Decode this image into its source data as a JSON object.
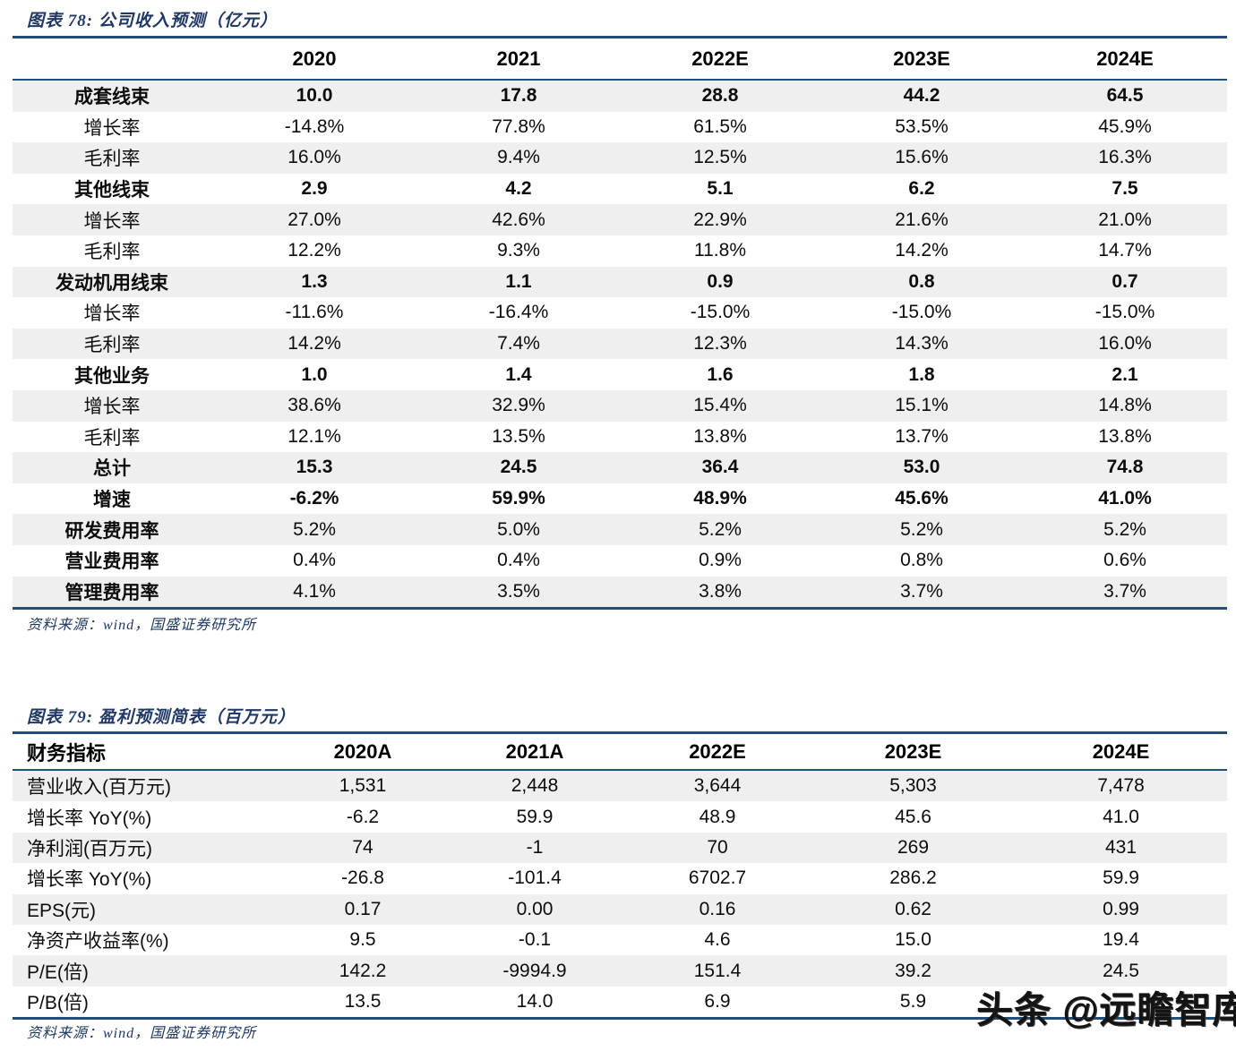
{
  "page": {
    "watermark": "头条 @远瞻智库"
  },
  "colors": {
    "border_navy": "#1f4e79",
    "title_blue": "#1f3864",
    "stripe_gray": "#efefef"
  },
  "figure78": {
    "title": "图表 78:  公司收入预测（亿元）",
    "source": "资料来源：wind，国盛证券研究所",
    "columns": [
      "",
      "2020",
      "2021",
      "2022E",
      "2023E",
      "2024E"
    ],
    "rows": [
      {
        "label": "成套线束",
        "values": [
          "10.0",
          "17.8",
          "28.8",
          "44.2",
          "64.5"
        ],
        "bold": "all"
      },
      {
        "label": "增长率",
        "values": [
          "-14.8%",
          "77.8%",
          "61.5%",
          "53.5%",
          "45.9%"
        ],
        "bold": "none"
      },
      {
        "label": "毛利率",
        "values": [
          "16.0%",
          "9.4%",
          "12.5%",
          "15.6%",
          "16.3%"
        ],
        "bold": "none"
      },
      {
        "label": "其他线束",
        "values": [
          "2.9",
          "4.2",
          "5.1",
          "6.2",
          "7.5"
        ],
        "bold": "all"
      },
      {
        "label": "增长率",
        "values": [
          "27.0%",
          "42.6%",
          "22.9%",
          "21.6%",
          "21.0%"
        ],
        "bold": "none"
      },
      {
        "label": "毛利率",
        "values": [
          "12.2%",
          "9.3%",
          "11.8%",
          "14.2%",
          "14.7%"
        ],
        "bold": "none"
      },
      {
        "label": "发动机用线束",
        "values": [
          "1.3",
          "1.1",
          "0.9",
          "0.8",
          "0.7"
        ],
        "bold": "all"
      },
      {
        "label": "增长率",
        "values": [
          "-11.6%",
          "-16.4%",
          "-15.0%",
          "-15.0%",
          "-15.0%"
        ],
        "bold": "none"
      },
      {
        "label": "毛利率",
        "values": [
          "14.2%",
          "7.4%",
          "12.3%",
          "14.3%",
          "16.0%"
        ],
        "bold": "none"
      },
      {
        "label": "其他业务",
        "values": [
          "1.0",
          "1.4",
          "1.6",
          "1.8",
          "2.1"
        ],
        "bold": "all"
      },
      {
        "label": "增长率",
        "values": [
          "38.6%",
          "32.9%",
          "15.4%",
          "15.1%",
          "14.8%"
        ],
        "bold": "none"
      },
      {
        "label": "毛利率",
        "values": [
          "12.1%",
          "13.5%",
          "13.8%",
          "13.7%",
          "13.8%"
        ],
        "bold": "none"
      },
      {
        "label": "总计",
        "values": [
          "15.3",
          "24.5",
          "36.4",
          "53.0",
          "74.8"
        ],
        "bold": "all"
      },
      {
        "label": "增速",
        "values": [
          "-6.2%",
          "59.9%",
          "48.9%",
          "45.6%",
          "41.0%"
        ],
        "bold": "all"
      },
      {
        "label": "研发费用率",
        "values": [
          "5.2%",
          "5.0%",
          "5.2%",
          "5.2%",
          "5.2%"
        ],
        "bold": "label"
      },
      {
        "label": "营业费用率",
        "values": [
          "0.4%",
          "0.4%",
          "0.9%",
          "0.8%",
          "0.6%"
        ],
        "bold": "label"
      },
      {
        "label": "管理费用率",
        "values": [
          "4.1%",
          "3.5%",
          "3.8%",
          "3.7%",
          "3.7%"
        ],
        "bold": "label"
      }
    ]
  },
  "figure79": {
    "title": "图表 79:  盈利预测简表（百万元）",
    "source": "资料来源：wind，国盛证券研究所",
    "columns": [
      "财务指标",
      "2020A",
      "2021A",
      "2022E",
      "2023E",
      "2024E"
    ],
    "rows": [
      {
        "label": "营业收入(百万元)",
        "values": [
          "1,531",
          "2,448",
          "3,644",
          "5,303",
          "7,478"
        ],
        "bold": "none"
      },
      {
        "label": "增长率 YoY(%)",
        "values": [
          "-6.2",
          "59.9",
          "48.9",
          "45.6",
          "41.0"
        ],
        "bold": "none"
      },
      {
        "label": "净利润(百万元)",
        "values": [
          "74",
          "-1",
          "70",
          "269",
          "431"
        ],
        "bold": "none"
      },
      {
        "label": "增长率 YoY(%)",
        "values": [
          "-26.8",
          "-101.4",
          "6702.7",
          "286.2",
          "59.9"
        ],
        "bold": "none"
      },
      {
        "label": "EPS(元)",
        "values": [
          "0.17",
          "0.00",
          "0.16",
          "0.62",
          "0.99"
        ],
        "bold": "none"
      },
      {
        "label": "净资产收益率(%)",
        "values": [
          "9.5",
          "-0.1",
          "4.6",
          "15.0",
          "19.4"
        ],
        "bold": "none"
      },
      {
        "label": "P/E(倍)",
        "values": [
          "142.2",
          "-9994.9",
          "151.4",
          "39.2",
          "24.5"
        ],
        "bold": "none"
      },
      {
        "label": "P/B(倍)",
        "values": [
          "13.5",
          "14.0",
          "6.9",
          "5.9",
          ""
        ],
        "bold": "none"
      }
    ]
  }
}
